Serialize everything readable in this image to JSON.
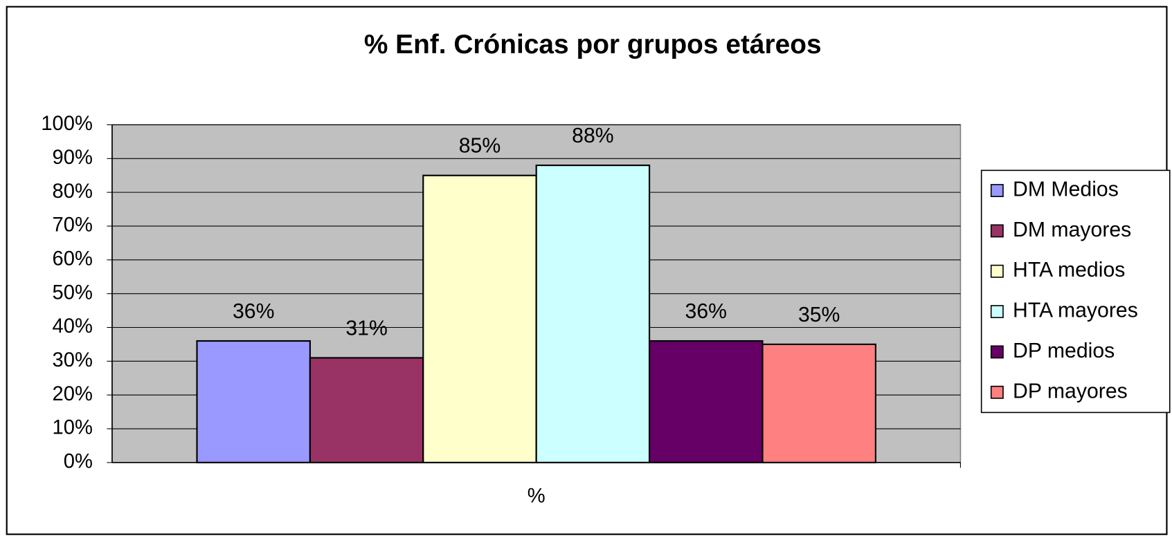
{
  "chart_data": {
    "type": "bar",
    "title": "% Enf. Crónicas por grupos etáreos",
    "categories": [
      "%"
    ],
    "series": [
      {
        "name": "DM Medios",
        "color": "#9999ff",
        "values": [
          36
        ],
        "value_labels": [
          "36%"
        ]
      },
      {
        "name": "DM mayores",
        "color": "#993366",
        "values": [
          31
        ],
        "value_labels": [
          "31%"
        ]
      },
      {
        "name": "HTA medios",
        "color": "#ffffcc",
        "values": [
          85
        ],
        "value_labels": [
          "85%"
        ]
      },
      {
        "name": "HTA mayores",
        "color": "#ccffff",
        "values": [
          88
        ],
        "value_labels": [
          "88%"
        ]
      },
      {
        "name": "DP medios",
        "color": "#660066",
        "values": [
          36
        ],
        "value_labels": [
          "36%"
        ]
      },
      {
        "name": "DP mayores",
        "color": "#ff8080",
        "values": [
          35
        ],
        "value_labels": [
          "35%"
        ]
      }
    ],
    "ylim": [
      0,
      100
    ],
    "yticks": [
      {
        "value": 0,
        "label": "0%"
      },
      {
        "value": 10,
        "label": "10%"
      },
      {
        "value": 20,
        "label": "20%"
      },
      {
        "value": 30,
        "label": "30%"
      },
      {
        "value": 40,
        "label": "40%"
      },
      {
        "value": 50,
        "label": "50%"
      },
      {
        "value": 60,
        "label": "60%"
      },
      {
        "value": 70,
        "label": "70%"
      },
      {
        "value": 80,
        "label": "80%"
      },
      {
        "value": 90,
        "label": "90%"
      },
      {
        "value": 100,
        "label": "100%"
      }
    ],
    "grid": true,
    "legend": "right"
  }
}
